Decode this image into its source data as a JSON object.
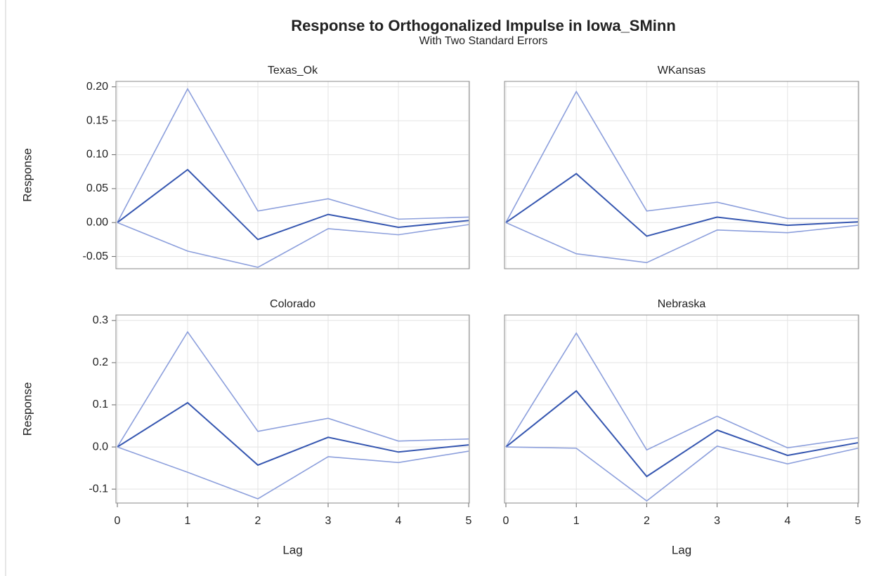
{
  "title": "Response to Orthogonalized Impulse in Iowa_SMinn",
  "subtitle": "With Two Standard Errors",
  "chart_data": [
    {
      "type": "line",
      "title": "Texas_Ok",
      "ylabel": "Response",
      "x": [
        0,
        1,
        2,
        3,
        4,
        5
      ],
      "series": [
        {
          "color": "#8c9fdc",
          "values": [
            0,
            0.197,
            0.017,
            0.035,
            0.005,
            0.008
          ]
        },
        {
          "color": "#3556b0",
          "values": [
            0,
            0.078,
            -0.025,
            0.012,
            -0.007,
            0.003
          ]
        },
        {
          "color": "#8c9fdc",
          "values": [
            0,
            -0.042,
            -0.066,
            -0.009,
            -0.018,
            -0.003
          ]
        }
      ],
      "xlim": [
        0,
        5
      ],
      "xticks": [
        0,
        1,
        2,
        3,
        4,
        5
      ],
      "ylim": [
        -0.068,
        0.208
      ],
      "yticks": [
        {
          "value": -0.05,
          "label": "-0.05"
        },
        {
          "value": 0,
          "label": "0.00"
        },
        {
          "value": 0.05,
          "label": "0.05"
        },
        {
          "value": 0.1,
          "label": "0.10"
        },
        {
          "value": 0.15,
          "label": "0.15"
        },
        {
          "value": 0.2,
          "label": "0.20"
        }
      ],
      "grid": true
    },
    {
      "type": "line",
      "title": "WKansas",
      "x": [
        0,
        1,
        2,
        3,
        4,
        5
      ],
      "series": [
        {
          "color": "#8c9fdc",
          "values": [
            0,
            0.193,
            0.017,
            0.03,
            0.006,
            0.006
          ]
        },
        {
          "color": "#3556b0",
          "values": [
            0,
            0.072,
            -0.02,
            0.008,
            -0.004,
            0.001
          ]
        },
        {
          "color": "#8c9fdc",
          "values": [
            0,
            -0.046,
            -0.059,
            -0.011,
            -0.015,
            -0.004
          ]
        }
      ],
      "xlim": [
        0,
        5
      ],
      "xticks": [
        0,
        1,
        2,
        3,
        4,
        5
      ],
      "ylim": [
        -0.068,
        0.208
      ],
      "yticks": [
        -0.05,
        0,
        0.05,
        0.1,
        0.15,
        0.2
      ],
      "grid": true
    },
    {
      "type": "line",
      "title": "Colorado",
      "ylabel": "Response",
      "xlabel": "Lag",
      "x": [
        0,
        1,
        2,
        3,
        4,
        5
      ],
      "series": [
        {
          "color": "#8c9fdc",
          "values": [
            0,
            0.273,
            0.037,
            0.068,
            0.014,
            0.019
          ]
        },
        {
          "color": "#3556b0",
          "values": [
            0,
            0.105,
            -0.043,
            0.023,
            -0.012,
            0.005
          ]
        },
        {
          "color": "#8c9fdc",
          "values": [
            0,
            -0.06,
            -0.123,
            -0.023,
            -0.037,
            -0.01
          ]
        }
      ],
      "xlim": [
        0,
        5
      ],
      "xticks": [
        0,
        1,
        2,
        3,
        4,
        5
      ],
      "ylim": [
        -0.133,
        0.313
      ],
      "yticks": [
        -0.1,
        {
          "value": 0,
          "label": "0.0"
        },
        0.1,
        0.2,
        0.3
      ],
      "grid": true
    },
    {
      "type": "line",
      "title": "Nebraska",
      "xlabel": "Lag",
      "x": [
        0,
        1,
        2,
        3,
        4,
        5
      ],
      "series": [
        {
          "color": "#8c9fdc",
          "values": [
            0,
            0.27,
            -0.007,
            0.073,
            -0.002,
            0.022
          ]
        },
        {
          "color": "#3556b0",
          "values": [
            0,
            0.133,
            -0.07,
            0.04,
            -0.02,
            0.01
          ]
        },
        {
          "color": "#8c9fdc",
          "values": [
            0,
            -0.003,
            -0.128,
            0.002,
            -0.04,
            -0.003
          ]
        }
      ],
      "xlim": [
        0,
        5
      ],
      "xticks": [
        0,
        1,
        2,
        3,
        4,
        5
      ],
      "ylim": [
        -0.133,
        0.313
      ],
      "yticks": [
        -0.1,
        0,
        0.1,
        0.2,
        0.3
      ],
      "grid": true
    }
  ]
}
